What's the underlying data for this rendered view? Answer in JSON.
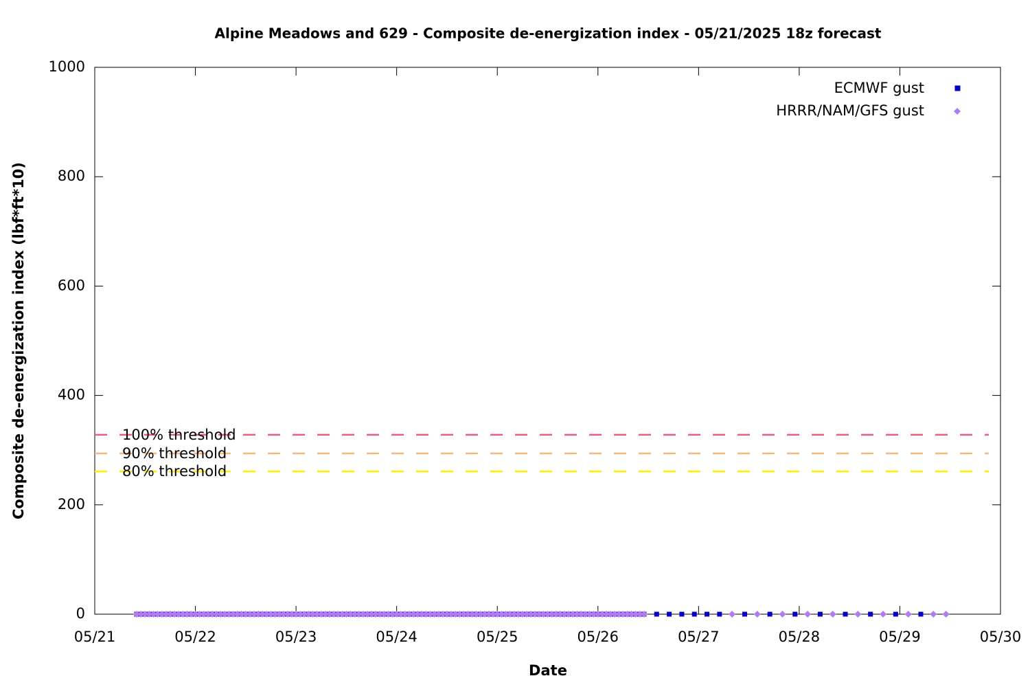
{
  "chart_data": {
    "type": "scatter",
    "title": "Alpine Meadows and 629 - Composite de-energization index - 05/21/2025 18z forecast",
    "x_label": "Date",
    "y_label": "Composite de-energization index (lbf*ft*10)",
    "xlim": [
      0,
      216
    ],
    "xticks": [
      {
        "value": 0,
        "label": "05/21"
      },
      {
        "value": 24,
        "label": "05/22"
      },
      {
        "value": 48,
        "label": "05/23"
      },
      {
        "value": 72,
        "label": "05/24"
      },
      {
        "value": 96,
        "label": "05/25"
      },
      {
        "value": 120,
        "label": "05/26"
      },
      {
        "value": 144,
        "label": "05/27"
      },
      {
        "value": 168,
        "label": "05/28"
      },
      {
        "value": 192,
        "label": "05/29"
      },
      {
        "value": 216,
        "label": "05/30"
      }
    ],
    "ylim": [
      0,
      1000
    ],
    "yticks": [
      0,
      200,
      400,
      600,
      800,
      1000
    ],
    "legend": "upper right",
    "thresholds": [
      {
        "label": "100% threshold",
        "value": 328,
        "color": "#e0607e"
      },
      {
        "label": "90% threshold",
        "value": 294,
        "color": "#f8b878"
      },
      {
        "label": "80% threshold",
        "value": 261,
        "color": "#ffee00"
      }
    ],
    "series": [
      {
        "name": "ECMWF gust",
        "color": "#0000c8",
        "marker": "square",
        "x": [
          10,
          11,
          12,
          13,
          14,
          15,
          16,
          17,
          18,
          19,
          20,
          21,
          22,
          23,
          24,
          25,
          26,
          27,
          28,
          29,
          30,
          31,
          32,
          33,
          34,
          35,
          36,
          37,
          38,
          39,
          40,
          41,
          42,
          43,
          44,
          45,
          46,
          47,
          48,
          49,
          50,
          51,
          52,
          53,
          54,
          55,
          56,
          57,
          58,
          59,
          60,
          61,
          62,
          63,
          64,
          65,
          66,
          67,
          68,
          69,
          70,
          71,
          72,
          73,
          74,
          75,
          76,
          77,
          78,
          79,
          80,
          81,
          82,
          83,
          84,
          85,
          86,
          87,
          88,
          89,
          90,
          91,
          92,
          93,
          94,
          95,
          96,
          97,
          98,
          99,
          100,
          101,
          102,
          103,
          104,
          105,
          106,
          107,
          108,
          109,
          110,
          111,
          112,
          113,
          114,
          115,
          116,
          117,
          118,
          119,
          120,
          121,
          122,
          123,
          124,
          125,
          126,
          127,
          128,
          129,
          130,
          131,
          134,
          137,
          140,
          143,
          146,
          149,
          155,
          161,
          167,
          173,
          179,
          185,
          191,
          197
        ],
        "values": [
          0,
          0,
          0,
          0,
          0,
          0,
          0,
          0,
          0,
          0,
          0,
          0,
          0,
          0,
          0,
          0,
          0,
          0,
          0,
          0,
          0,
          0,
          0,
          0,
          0,
          0,
          0,
          0,
          0,
          0,
          0,
          0,
          0,
          0,
          0,
          0,
          0,
          0,
          0,
          0,
          0,
          0,
          0,
          0,
          0,
          0,
          0,
          0,
          0,
          0,
          0,
          0,
          0,
          0,
          0,
          0,
          0,
          0,
          0,
          0,
          0,
          0,
          0,
          0,
          0,
          0,
          0,
          0,
          0,
          0,
          0,
          0,
          0,
          0,
          0,
          0,
          0,
          0,
          0,
          0,
          0,
          0,
          0,
          0,
          0,
          0,
          0,
          0,
          0,
          0,
          0,
          0,
          0,
          0,
          0,
          0,
          0,
          0,
          0,
          0,
          0,
          0,
          0,
          0,
          0,
          0,
          0,
          0,
          0,
          0,
          0,
          0,
          0,
          0,
          0,
          0,
          0,
          0,
          0,
          0,
          0,
          0,
          0,
          0,
          0,
          0,
          0,
          0,
          0,
          0,
          0,
          0,
          0,
          0,
          0,
          0
        ]
      },
      {
        "name": "HRRR/NAM/GFS gust",
        "color": "#b47af0",
        "marker": "diamond",
        "x": [
          10,
          11,
          12,
          13,
          14,
          15,
          16,
          17,
          18,
          19,
          20,
          21,
          22,
          23,
          24,
          25,
          26,
          27,
          28,
          29,
          30,
          31,
          32,
          33,
          34,
          35,
          36,
          37,
          38,
          39,
          40,
          41,
          42,
          43,
          44,
          45,
          46,
          47,
          48,
          49,
          50,
          51,
          52,
          53,
          54,
          55,
          56,
          57,
          58,
          59,
          60,
          61,
          62,
          63,
          64,
          65,
          66,
          67,
          68,
          69,
          70,
          71,
          72,
          73,
          74,
          75,
          76,
          77,
          78,
          79,
          80,
          81,
          82,
          83,
          84,
          85,
          86,
          87,
          88,
          89,
          90,
          91,
          92,
          93,
          94,
          95,
          96,
          97,
          98,
          99,
          100,
          101,
          102,
          103,
          104,
          105,
          106,
          107,
          108,
          109,
          110,
          111,
          112,
          113,
          114,
          115,
          116,
          117,
          118,
          119,
          120,
          121,
          122,
          123,
          124,
          125,
          126,
          127,
          128,
          129,
          130,
          131,
          152,
          158,
          164,
          170,
          176,
          182,
          188,
          194,
          200,
          203
        ],
        "values": [
          0,
          0,
          0,
          0,
          0,
          0,
          0,
          0,
          0,
          0,
          0,
          0,
          0,
          0,
          0,
          0,
          0,
          0,
          0,
          0,
          0,
          0,
          0,
          0,
          0,
          0,
          0,
          0,
          0,
          0,
          0,
          0,
          0,
          0,
          0,
          0,
          0,
          0,
          0,
          0,
          0,
          0,
          0,
          0,
          0,
          0,
          0,
          0,
          0,
          0,
          0,
          0,
          0,
          0,
          0,
          0,
          0,
          0,
          0,
          0,
          0,
          0,
          0,
          0,
          0,
          0,
          0,
          0,
          0,
          0,
          0,
          0,
          0,
          0,
          0,
          0,
          0,
          0,
          0,
          0,
          0,
          0,
          0,
          0,
          0,
          0,
          0,
          0,
          0,
          0,
          0,
          0,
          0,
          0,
          0,
          0,
          0,
          0,
          0,
          0,
          0,
          0,
          0,
          0,
          0,
          0,
          0,
          0,
          0,
          0,
          0,
          0,
          0,
          0,
          0,
          0,
          0,
          0,
          0,
          0,
          0,
          0,
          0,
          0,
          0,
          0,
          0,
          0,
          0,
          0,
          0,
          0
        ]
      }
    ]
  }
}
